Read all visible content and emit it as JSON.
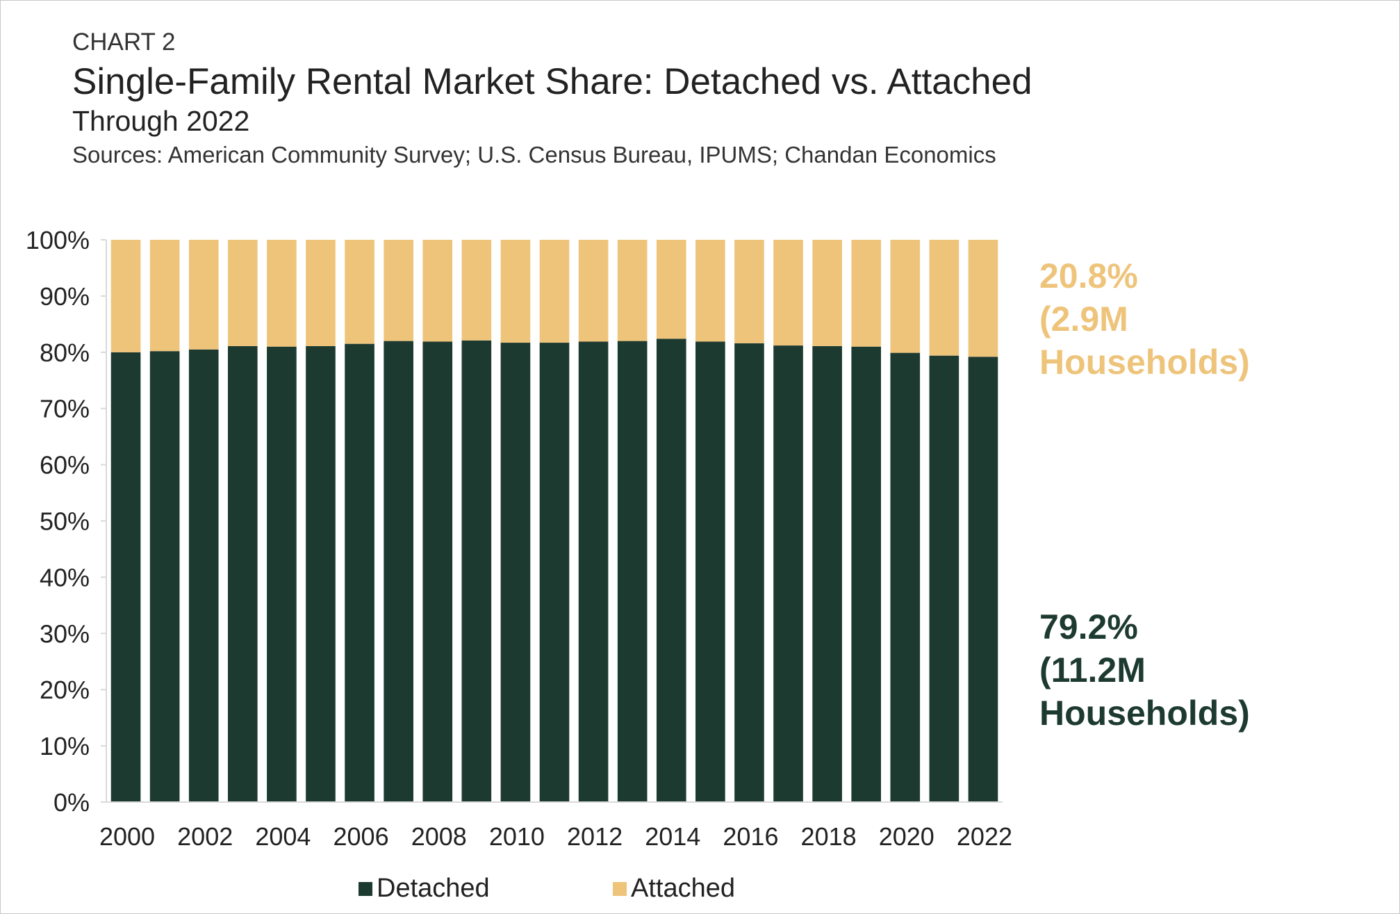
{
  "header": {
    "chart_label": "CHART 2",
    "title": "Single-Family Rental Market Share: Detached vs. Attached",
    "subtitle": "Through 2022",
    "sources": "Sources: American Community Survey; U.S. Census Bureau, IPUMS; Chandan Economics"
  },
  "annotations": {
    "attached": [
      "20.8%",
      "(2.9M",
      "Households)"
    ],
    "detached": [
      "79.2%",
      "(11.2M",
      "Households)"
    ]
  },
  "chart_data": {
    "type": "bar",
    "stacked": true,
    "categories": [
      "2000",
      "2001",
      "2002",
      "2003",
      "2004",
      "2005",
      "2006",
      "2007",
      "2008",
      "2009",
      "2010",
      "2011",
      "2012",
      "2013",
      "2014",
      "2015",
      "2016",
      "2017",
      "2018",
      "2019",
      "2020",
      "2021",
      "2022"
    ],
    "x_tick_labels": [
      "2000",
      "2002",
      "2004",
      "2006",
      "2008",
      "2010",
      "2012",
      "2014",
      "2016",
      "2018",
      "2020",
      "2022"
    ],
    "series": [
      {
        "name": "Detached",
        "color": "#1d3a31",
        "values": [
          80.0,
          80.2,
          80.5,
          81.1,
          81.0,
          81.1,
          81.5,
          82.0,
          81.9,
          82.1,
          81.7,
          81.7,
          81.9,
          82.0,
          82.4,
          81.9,
          81.6,
          81.2,
          81.1,
          81.0,
          79.9,
          79.4,
          79.2
        ]
      },
      {
        "name": "Attached",
        "color": "#eec47b",
        "values": [
          20.0,
          19.8,
          19.5,
          18.9,
          19.0,
          18.9,
          18.5,
          18.0,
          18.1,
          17.9,
          18.3,
          18.3,
          18.1,
          18.0,
          17.6,
          18.1,
          18.4,
          18.8,
          18.9,
          19.0,
          20.1,
          20.6,
          20.8
        ]
      }
    ],
    "ylim": [
      0,
      100
    ],
    "y_tick_labels": [
      "0%",
      "10%",
      "20%",
      "30%",
      "40%",
      "50%",
      "60%",
      "70%",
      "80%",
      "90%",
      "100%"
    ],
    "grid": false,
    "legend": "bottom",
    "title": "Single-Family Rental Market Share: Detached vs. Attached",
    "xlabel": "",
    "ylabel": ""
  }
}
